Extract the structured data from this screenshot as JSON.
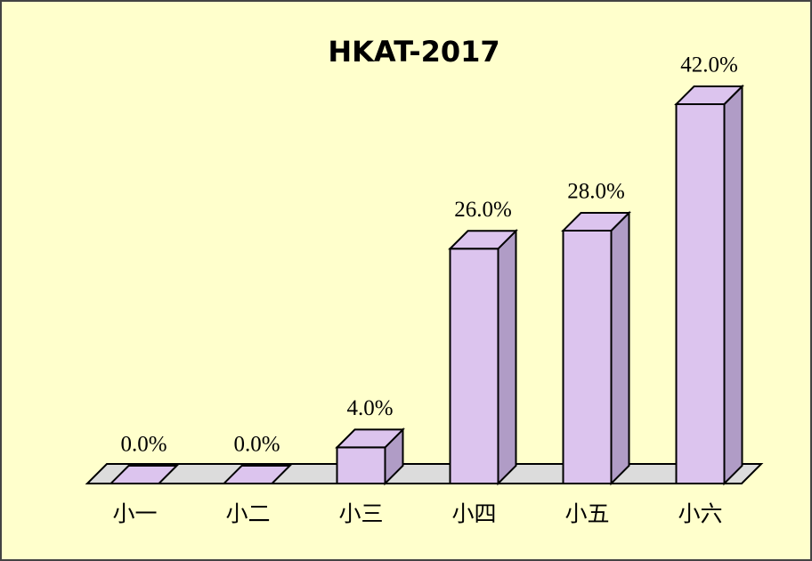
{
  "chart_data": {
    "type": "bar",
    "title": "HKAT-2017",
    "categories": [
      "小一",
      "小二",
      "小三",
      "小四",
      "小五",
      "小六"
    ],
    "values": [
      0,
      0,
      4,
      26,
      28,
      42
    ],
    "value_labels": [
      "0.0%",
      "0.0%",
      "4.0%",
      "26.0%",
      "28.0%",
      "42.0%"
    ],
    "color": "#dcc4ee"
  }
}
